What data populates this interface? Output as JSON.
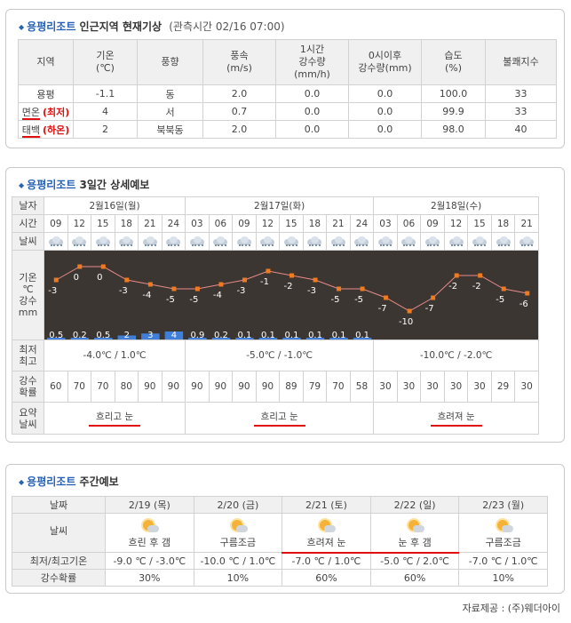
{
  "current": {
    "title_resort": "용평리조트",
    "title_rest": "인근지역 현재기상",
    "obs_time": "(관측시간 02/16 07:00)",
    "headers": [
      "지역",
      "기온\n(℃)",
      "풍향",
      "풍속\n(m/s)",
      "1시간\n강수량\n(mm/h)",
      "0시이후\n강수량(mm)",
      "습도\n(%)",
      "불쾌지수"
    ],
    "rows": [
      {
        "region": "용평",
        "tag": "",
        "temp": "-1.1",
        "wind_dir": "동",
        "wind_speed": "2.0",
        "precip_1h": "0.0",
        "precip_day": "0.0",
        "humidity": "100.0",
        "discomfort": "33"
      },
      {
        "region": "면온",
        "tag": "(최저)",
        "temp": "4",
        "wind_dir": "서",
        "wind_speed": "0.7",
        "precip_1h": "0.0",
        "precip_day": "0.0",
        "humidity": "99.9",
        "discomfort": "33"
      },
      {
        "region": "태백",
        "tag": "(하온)",
        "temp": "2",
        "wind_dir": "북북동",
        "wind_speed": "2.0",
        "precip_1h": "0.0",
        "precip_day": "0.0",
        "humidity": "98.0",
        "discomfort": "40"
      }
    ]
  },
  "detail": {
    "title_resort": "용평리조트",
    "title_rest": "3일간 상세예보",
    "labels": {
      "date": "날자",
      "time": "시간",
      "weather": "날씨",
      "temp_precip": "기온\n℃\n강수\nmm",
      "minmax": "최저\n최고",
      "prob": "강수\n확률",
      "summary": "요약\n날씨"
    },
    "days": [
      {
        "date": "2월16일(월)",
        "span": 6,
        "minmax": "-4.0℃ / 1.0℃",
        "summary": "흐리고 눈"
      },
      {
        "date": "2월17일(화)",
        "span": 8,
        "minmax": "-5.0℃ / -1.0℃",
        "summary": "흐리고 눈"
      },
      {
        "date": "2월18일(수)",
        "span": 7,
        "minmax": "-10.0℃ / -2.0℃",
        "summary": "흐려져 눈"
      }
    ],
    "times": [
      "09",
      "12",
      "15",
      "18",
      "21",
      "24",
      "03",
      "06",
      "09",
      "12",
      "15",
      "18",
      "21",
      "24",
      "03",
      "06",
      "09",
      "12",
      "15",
      "18",
      "21"
    ],
    "precip_prob": [
      "60",
      "70",
      "70",
      "80",
      "90",
      "90",
      "90",
      "90",
      "90",
      "90",
      "89",
      "79",
      "70",
      "58",
      "30",
      "30",
      "30",
      "30",
      "30",
      "29",
      "30"
    ]
  },
  "chart_data": {
    "type": "line",
    "x": [
      "09",
      "12",
      "15",
      "18",
      "21",
      "24",
      "03",
      "06",
      "09",
      "12",
      "15",
      "18",
      "21",
      "24",
      "03",
      "06",
      "09",
      "12",
      "15",
      "18",
      "21"
    ],
    "series": [
      {
        "values": [
          -3,
          0,
          0,
          -3,
          -4,
          -5,
          -5,
          -4,
          -3,
          -1,
          -2,
          -3,
          -5,
          -5,
          -7,
          -10,
          -7,
          -2,
          -2,
          -5,
          -6
        ]
      }
    ],
    "precip_labels": [
      "0.5",
      "0.2",
      "0.5",
      "2",
      "3",
      "4",
      "0.9",
      "0.2",
      "0.1",
      "0.1",
      "0.1",
      "0.1",
      "0.1",
      "0.1"
    ],
    "precip_values": [
      0.5,
      0.2,
      0.5,
      2,
      3,
      4,
      0.9,
      0.2,
      0.1,
      0.1,
      0.1,
      0.1,
      0.1,
      0.1
    ],
    "line_color": "#e98a8a",
    "marker_color": "#f07b1e",
    "bar_color": "#3f7fd9",
    "background": "#3b3631"
  },
  "weekly": {
    "title_resort": "용평리조트",
    "title_rest": "주간예보",
    "labels": {
      "date": "날짜",
      "weather": "날씨",
      "minmax": "최저/최고기온",
      "prob": "강수확률"
    },
    "days": [
      {
        "date": "2/19 (목)",
        "weather": "흐린 후 갬",
        "minmax": "-9.0 ℃ / -3.0℃",
        "prob": "30%",
        "icon": "sun-cloud-icon"
      },
      {
        "date": "2/20 (금)",
        "weather": "구름조금",
        "minmax": "-10.0 ℃ / 1.0℃",
        "prob": "10%",
        "icon": "sun-cloud-icon"
      },
      {
        "date": "2/21 (토)",
        "weather": "흐려져 눈",
        "minmax": "-7.0 ℃ / 1.0℃",
        "prob": "60%",
        "icon": "sun-cloud-snow-icon"
      },
      {
        "date": "2/22 (일)",
        "weather": "눈 후 갬",
        "minmax": "-5.0 ℃ / 2.0℃",
        "prob": "60%",
        "icon": "sun-cloud-snow-icon"
      },
      {
        "date": "2/23 (월)",
        "weather": "구름조금",
        "minmax": "-7.0 ℃ / 1.0℃",
        "prob": "10%",
        "icon": "sun-cloud-icon"
      }
    ]
  },
  "credit": "자료제공 : (주)웨더아이"
}
